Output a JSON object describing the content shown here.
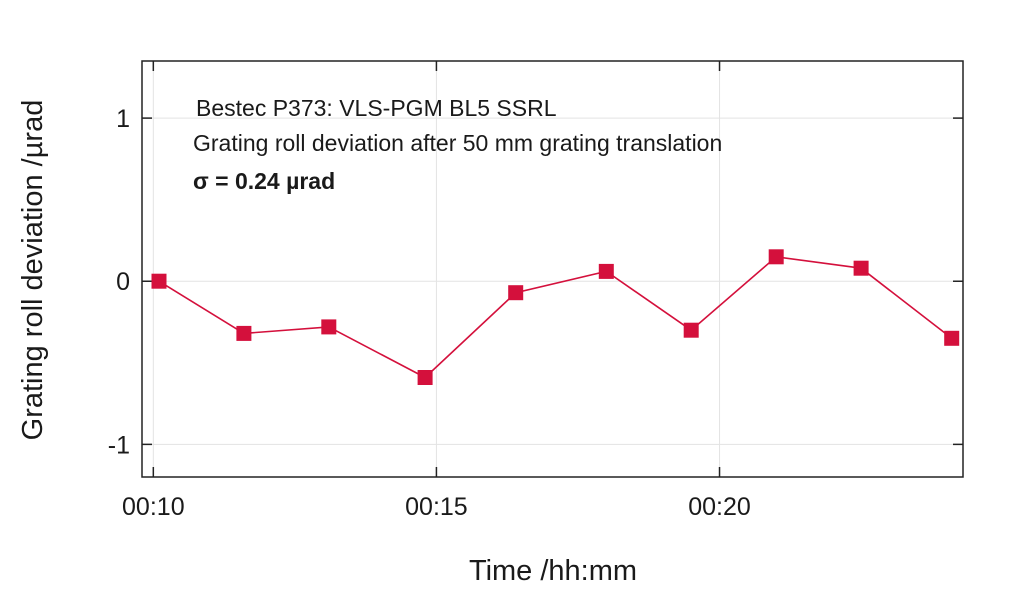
{
  "chart_data": {
    "type": "line",
    "xlabel": "Time /hh:mm",
    "ylabel": "Grating roll deviation /µrad",
    "annotations": [
      "Bestec P373: VLS-PGM BL5 SSRL",
      "Grating roll deviation after 50 mm grating translation",
      "σ = 0.24 µrad"
    ],
    "x_ticks": [
      "00:10",
      "00:15",
      "00:20"
    ],
    "y_ticks": [
      "1",
      "0",
      "-1"
    ],
    "y_tick_values": [
      1,
      0,
      -1
    ],
    "x_tick_minutes": [
      10,
      15,
      20
    ],
    "xlim_minutes": [
      9.8,
      24.3
    ],
    "ylim": [
      -1.2,
      1.35
    ],
    "grid": true,
    "series_color": "#d4103c",
    "x_minutes": [
      10.1,
      11.6,
      13.1,
      14.8,
      16.4,
      18.0,
      19.5,
      21.0,
      22.5,
      24.1
    ],
    "values": [
      0.0,
      -0.32,
      -0.28,
      -0.59,
      -0.07,
      0.06,
      -0.3,
      0.15,
      0.08,
      -0.35
    ]
  }
}
